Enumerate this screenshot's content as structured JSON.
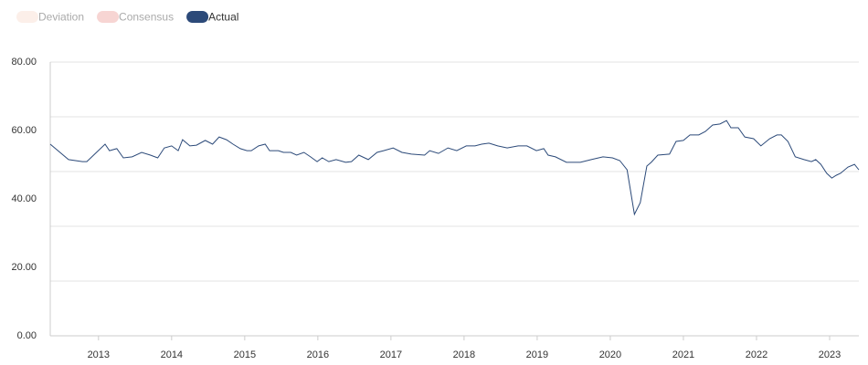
{
  "chart_data": {
    "type": "line",
    "legend_items": [
      {
        "name": "Deviation",
        "color": "#fcefe9",
        "active": false
      },
      {
        "name": "Consensus",
        "color": "#f7d5d3",
        "active": false
      }
    ],
    "x": [
      2012.34,
      2012.59,
      2012.78,
      2012.84,
      2013.09,
      2013.15,
      2013.25,
      2013.34,
      2013.46,
      2013.59,
      2013.71,
      2013.81,
      2013.9,
      2014.0,
      2014.09,
      2014.15,
      2014.25,
      2014.34,
      2014.46,
      2014.56,
      2014.65,
      2014.75,
      2014.84,
      2014.94,
      2015.03,
      2015.09,
      2015.19,
      2015.28,
      2015.34,
      2015.46,
      2015.53,
      2015.63,
      2015.71,
      2015.81,
      2015.9,
      2015.99,
      2016.06,
      2016.15,
      2016.25,
      2016.38,
      2016.46,
      2016.56,
      2016.69,
      2016.81,
      2016.9,
      2017.03,
      2017.15,
      2017.28,
      2017.46,
      2017.53,
      2017.65,
      2017.78,
      2017.9,
      2018.03,
      2018.15,
      2018.24,
      2018.34,
      2018.46,
      2018.59,
      2018.74,
      2018.86,
      2018.99,
      2019.09,
      2019.15,
      2019.25,
      2019.4,
      2019.59,
      2019.74,
      2019.9,
      2020.03,
      2020.13,
      2020.23,
      2020.33,
      2020.41,
      2020.5,
      2020.56,
      2020.65,
      2020.81,
      2020.9,
      2021.0,
      2021.09,
      2021.21,
      2021.3,
      2021.4,
      2021.5,
      2021.59,
      2021.65,
      2021.75,
      2021.84,
      2021.96,
      2022.06,
      2022.18,
      2022.28,
      2022.34,
      2022.43,
      2022.53,
      2022.65,
      2022.75,
      2022.81,
      2022.88,
      2022.96,
      2023.03,
      2023.09,
      2023.15,
      2023.25,
      2023.34,
      2023.4
    ],
    "series": [
      {
        "name": "Actual",
        "color": "#2c4a79",
        "values": [
          56.0,
          51.5,
          50.9,
          50.9,
          56.0,
          54.1,
          54.7,
          52.0,
          52.3,
          53.6,
          52.8,
          52.0,
          54.9,
          55.5,
          54.1,
          57.3,
          55.5,
          55.7,
          57.1,
          56.0,
          58.1,
          57.3,
          56.0,
          54.7,
          54.1,
          54.1,
          55.5,
          56.0,
          54.1,
          54.1,
          53.6,
          53.6,
          52.8,
          53.6,
          52.3,
          50.9,
          52.0,
          50.9,
          51.5,
          50.7,
          50.9,
          52.8,
          51.5,
          53.6,
          54.1,
          54.9,
          53.6,
          53.1,
          52.8,
          54.1,
          53.3,
          54.9,
          54.1,
          55.5,
          55.5,
          56.0,
          56.3,
          55.5,
          54.9,
          55.5,
          55.5,
          54.1,
          54.7,
          52.8,
          52.3,
          50.7,
          50.7,
          51.5,
          52.3,
          52.0,
          51.2,
          48.5,
          35.5,
          38.9,
          49.6,
          50.7,
          52.8,
          53.1,
          56.8,
          57.1,
          58.7,
          58.7,
          59.7,
          61.6,
          61.9,
          62.9,
          60.8,
          60.8,
          58.1,
          57.6,
          55.5,
          57.6,
          58.7,
          58.7,
          56.8,
          52.3,
          51.5,
          50.9,
          51.5,
          50.1,
          47.5,
          46.1,
          46.9,
          47.5,
          49.3,
          50.1,
          48.5
        ]
      }
    ],
    "xlim": [
      2012.34,
      2023.4
    ],
    "xticks": [
      2013,
      2014,
      2015,
      2016,
      2017,
      2018,
      2019,
      2020,
      2021,
      2022,
      2023
    ],
    "ylim": [
      0,
      80
    ],
    "yticks": [
      {
        "value": 0,
        "label": "0.00"
      },
      {
        "value": 20,
        "label": "20.00"
      },
      {
        "value": 40,
        "label": "40.00"
      },
      {
        "value": 60,
        "label": "60.00"
      },
      {
        "value": 80,
        "label": "80.00"
      }
    ],
    "ygrid": [
      16,
      32,
      48,
      64,
      80
    ],
    "grid": true
  }
}
